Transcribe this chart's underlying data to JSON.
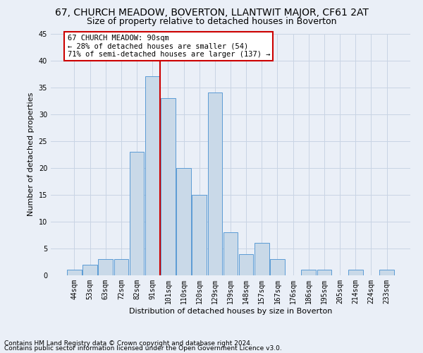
{
  "title": "67, CHURCH MEADOW, BOVERTON, LLANTWIT MAJOR, CF61 2AT",
  "subtitle": "Size of property relative to detached houses in Boverton",
  "xlabel": "Distribution of detached houses by size in Boverton",
  "ylabel": "Number of detached properties",
  "footnote1": "Contains HM Land Registry data © Crown copyright and database right 2024.",
  "footnote2": "Contains public sector information licensed under the Open Government Licence v3.0.",
  "bar_labels": [
    "44sqm",
    "53sqm",
    "63sqm",
    "72sqm",
    "82sqm",
    "91sqm",
    "101sqm",
    "110sqm",
    "120sqm",
    "129sqm",
    "139sqm",
    "148sqm",
    "157sqm",
    "167sqm",
    "176sqm",
    "186sqm",
    "195sqm",
    "205sqm",
    "214sqm",
    "224sqm",
    "233sqm"
  ],
  "bar_values": [
    1,
    2,
    3,
    3,
    23,
    37,
    33,
    20,
    15,
    34,
    8,
    4,
    6,
    3,
    0,
    1,
    1,
    0,
    1,
    0,
    1
  ],
  "bar_color": "#c9d9e8",
  "bar_edge_color": "#5b9bd5",
  "vline_color": "#cc0000",
  "vline_x": 5.5,
  "annotation_title": "67 CHURCH MEADOW: 90sqm",
  "annotation_line1": "← 28% of detached houses are smaller (54)",
  "annotation_line2": "71% of semi-detached houses are larger (137) →",
  "annotation_box_facecolor": "#ffffff",
  "annotation_box_edgecolor": "#cc0000",
  "ylim": [
    0,
    45
  ],
  "yticks": [
    0,
    5,
    10,
    15,
    20,
    25,
    30,
    35,
    40,
    45
  ],
  "grid_color": "#c8d4e4",
  "bg_color": "#eaeff7",
  "title_fontsize": 10,
  "subtitle_fontsize": 9,
  "axis_label_fontsize": 8,
  "tick_fontsize": 7,
  "annot_fontsize": 7.5,
  "footnote_fontsize": 6.5
}
